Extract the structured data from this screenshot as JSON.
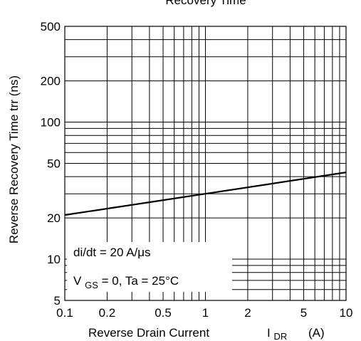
{
  "chart_data": {
    "type": "line",
    "title": "Recovery Time",
    "xlabel": "Reverse Drain Current",
    "xlabel_symbol": "I",
    "xlabel_symbol_sub": "DR",
    "xlabel_unit": "(A)",
    "ylabel": "Reverse Recovery Time   trr  (ns)",
    "x_scale": "log",
    "y_scale": "log",
    "xlim": [
      0.1,
      10
    ],
    "ylim": [
      5,
      500
    ],
    "grid": true,
    "x_ticks": [
      {
        "value": 0.1,
        "label": "0.1"
      },
      {
        "value": 0.2,
        "label": "0.2"
      },
      {
        "value": 0.5,
        "label": "0.5"
      },
      {
        "value": 1,
        "label": "1"
      },
      {
        "value": 2,
        "label": "2"
      },
      {
        "value": 5,
        "label": "5"
      },
      {
        "value": 10,
        "label": "10"
      }
    ],
    "y_ticks": [
      {
        "value": 5,
        "label": "5"
      },
      {
        "value": 10,
        "label": "10"
      },
      {
        "value": 20,
        "label": "20"
      },
      {
        "value": 50,
        "label": "50"
      },
      {
        "value": 100,
        "label": "100"
      },
      {
        "value": 200,
        "label": "200"
      },
      {
        "value": 500,
        "label": "500"
      }
    ],
    "x_grid": [
      0.2,
      0.3,
      0.4,
      0.5,
      0.6,
      0.7,
      0.8,
      0.9,
      1,
      2,
      3,
      4,
      5,
      6,
      7,
      8,
      9
    ],
    "y_grid": [
      6,
      7,
      8,
      9,
      10,
      20,
      30,
      40,
      50,
      60,
      70,
      80,
      90,
      100,
      200,
      300,
      400
    ],
    "series": [
      {
        "x": [
          0.1,
          1,
          10
        ],
        "y": [
          21,
          30,
          43
        ]
      }
    ],
    "annotations": {
      "line1": "di/dt = 20 A/μs",
      "line2_prefix": "V",
      "line2_sub": "GS",
      "line2_rest": " = 0,  Ta = 25°C"
    }
  }
}
